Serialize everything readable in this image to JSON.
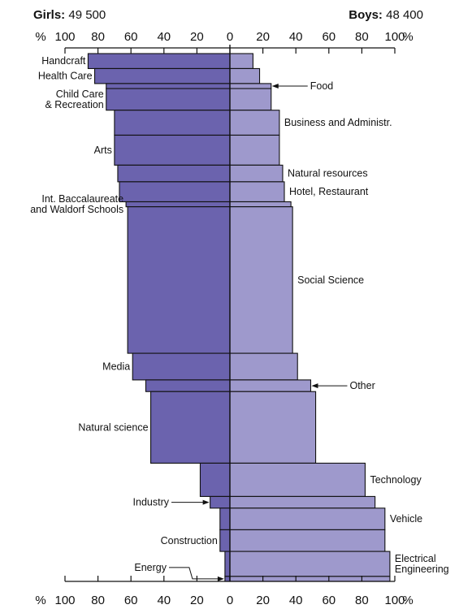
{
  "header": {
    "girls_label": "Girls:",
    "girls_value": "49 500",
    "boys_label": "Boys:",
    "boys_value": "48 400"
  },
  "colors": {
    "girls": "#6b63ae",
    "boys": "#9e99cc",
    "stroke": "#111111"
  },
  "chart_data": {
    "type": "bar",
    "orientation": "horizontal",
    "layout": "diverging (girls left, boys right)",
    "axis": {
      "percent_symbol": "%",
      "ticks_left": [
        "100",
        "80",
        "60",
        "40",
        "20",
        "0"
      ],
      "ticks_right": [
        "20",
        "40",
        "60",
        "80",
        "100"
      ],
      "xlim": [
        0,
        100
      ],
      "positions": [
        "top",
        "bottom"
      ]
    },
    "series": [
      {
        "name": "Girls: 49 500",
        "side": "left"
      },
      {
        "name": "Boys: 48 400",
        "side": "right"
      }
    ],
    "categories": [
      {
        "label": "Handcraft",
        "label_side": "left",
        "girls": 86,
        "boys": 14,
        "weight": 0.9
      },
      {
        "label": "Health Care",
        "label_side": "left",
        "girls": 82,
        "boys": 18,
        "weight": 0.9
      },
      {
        "label": "Food",
        "label_side": "right",
        "pointer": true,
        "girls": 75,
        "boys": 25,
        "weight": 0.3
      },
      {
        "label": "Child Care & Recreation",
        "label_lines": [
          "Child Care",
          "& Recreation"
        ],
        "label_side": "left",
        "girls": 75,
        "boys": 25,
        "weight": 1.3
      },
      {
        "label": "Business and Administr.",
        "label_side": "right",
        "girls": 70,
        "boys": 30,
        "weight": 1.5
      },
      {
        "label": "Arts",
        "label_side": "left",
        "girls": 70,
        "boys": 30,
        "weight": 1.8
      },
      {
        "label": "Natural resources",
        "label_side": "right",
        "girls": 68,
        "boys": 32,
        "weight": 1.0
      },
      {
        "label": "Hotel, Restaurant",
        "label_side": "right",
        "girls": 67,
        "boys": 33,
        "weight": 1.2
      },
      {
        "label": "Int. Baccalaureate and Waldorf Schools",
        "label_lines": [
          "Int. Baccalaureate",
          "and Waldorf Schools"
        ],
        "label_side": "left",
        "girls": 63,
        "boys": 37,
        "weight": 0.3
      },
      {
        "label": "Social Science",
        "label_side": "right",
        "girls": 62,
        "boys": 38,
        "weight": 8.8
      },
      {
        "label": "Media",
        "label_side": "left",
        "girls": 59,
        "boys": 41,
        "weight": 1.6
      },
      {
        "label": "Other",
        "label_side": "right",
        "pointer": true,
        "girls": 51,
        "boys": 49,
        "weight": 0.7
      },
      {
        "label": "Natural science",
        "label_side": "left",
        "girls": 48,
        "boys": 52,
        "weight": 4.3
      },
      {
        "label": "Technology",
        "label_side": "right",
        "girls": 18,
        "boys": 82,
        "weight": 2.0
      },
      {
        "label": "Industry",
        "label_side": "left",
        "pointer": true,
        "girls": 12,
        "boys": 88,
        "weight": 0.7
      },
      {
        "label": "Vehicle",
        "label_side": "right",
        "girls": 6,
        "boys": 94,
        "weight": 1.3
      },
      {
        "label": "Construction",
        "label_side": "left",
        "girls": 6,
        "boys": 94,
        "weight": 1.3
      },
      {
        "label": "Electrical Engineering",
        "label_lines": [
          "Electrical",
          "Engineering"
        ],
        "label_side": "right",
        "girls": 3,
        "boys": 97,
        "weight": 1.5
      },
      {
        "label": "Energy",
        "label_side": "left",
        "pointer": true,
        "girls": 3,
        "boys": 97,
        "weight": 0.3
      }
    ]
  }
}
